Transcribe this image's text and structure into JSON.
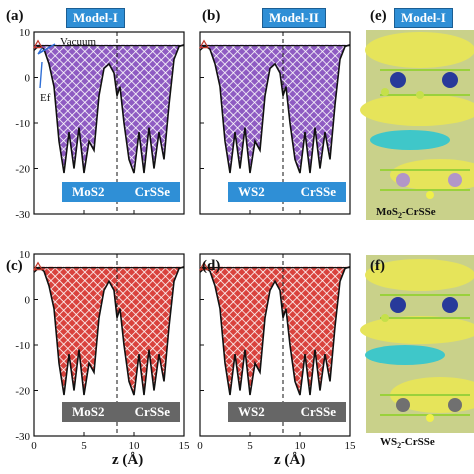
{
  "chart_data": [
    {
      "type": "area",
      "panel": "(a)",
      "model": "Model-I",
      "materials": [
        "MoS2",
        "CrSSe"
      ],
      "fill": "#8e5bc2",
      "box_color": "#2f8fd6",
      "annotations": [
        "Vacuum",
        "Ef"
      ],
      "xlim": [
        0,
        15
      ],
      "ylim": [
        -30,
        10
      ],
      "x": [
        0,
        0.5,
        1,
        1.5,
        2,
        2.5,
        3,
        3.5,
        4,
        4.5,
        5,
        5.5,
        6,
        6.5,
        7,
        7.5,
        8,
        8.3,
        8.6,
        9,
        9.5,
        10,
        10.5,
        11,
        11.5,
        12,
        12.5,
        13,
        13.5,
        14,
        14.5,
        15
      ],
      "y": [
        6,
        7,
        6.2,
        3,
        -2,
        -14,
        -21,
        -12,
        -20,
        -11,
        -21,
        -14,
        -16,
        -4,
        2,
        3,
        1,
        -4,
        -2,
        -10,
        -18,
        -21,
        -12,
        -21,
        -11,
        -20,
        -12,
        -18,
        -6,
        4,
        6.8,
        7.2
      ]
    },
    {
      "type": "area",
      "panel": "(b)",
      "model": "Model-II",
      "materials": [
        "WS2",
        "CrSSe"
      ],
      "fill": "#8e5bc2",
      "box_color": "#2f8fd6",
      "xlim": [
        0,
        15
      ],
      "ylim": [
        -30,
        10
      ],
      "x": [
        0,
        0.5,
        1,
        1.5,
        2,
        2.5,
        3,
        3.5,
        4,
        4.5,
        5,
        5.5,
        6,
        6.5,
        7,
        7.5,
        8,
        8.3,
        8.6,
        9,
        9.5,
        10,
        10.5,
        11,
        11.5,
        12,
        12.5,
        13,
        13.5,
        14,
        14.5,
        15
      ],
      "y": [
        6,
        7,
        6.2,
        3,
        -2,
        -14,
        -21,
        -12,
        -20,
        -11,
        -21,
        -14,
        -16,
        -4,
        2,
        3,
        1,
        -4,
        -2,
        -10,
        -18,
        -21,
        -12,
        -21,
        -11,
        -20,
        -12,
        -18,
        -6,
        4,
        6.8,
        7.2
      ]
    },
    {
      "type": "area",
      "panel": "(c)",
      "materials": [
        "MoS2",
        "CrSSe"
      ],
      "fill": "#d9423d",
      "box_color": "#666666",
      "xlim": [
        0,
        15
      ],
      "ylim": [
        -30,
        10
      ],
      "x": [
        0,
        0.5,
        1,
        1.5,
        2,
        2.5,
        3,
        3.5,
        4,
        4.5,
        5,
        5.5,
        6,
        6.5,
        7,
        7.5,
        8,
        8.3,
        8.6,
        9,
        9.5,
        10,
        10.5,
        11,
        11.5,
        12,
        12.5,
        13,
        13.5,
        14,
        14.5,
        15
      ],
      "y": [
        6,
        7,
        6.2,
        3,
        -2,
        -14,
        -21,
        -12,
        -20,
        -11,
        -21,
        -14,
        -16,
        -4,
        2,
        4,
        2,
        -4,
        -2,
        -10,
        -18,
        -21,
        -12,
        -21,
        -11,
        -20,
        -12,
        -18,
        -6,
        4,
        6.8,
        7.2
      ]
    },
    {
      "type": "area",
      "panel": "(d)",
      "materials": [
        "WS2",
        "CrSSe"
      ],
      "fill": "#d9423d",
      "box_color": "#666666",
      "xlim": [
        0,
        15
      ],
      "ylim": [
        -30,
        10
      ],
      "x": [
        0,
        0.5,
        1,
        1.5,
        2,
        2.5,
        3,
        3.5,
        4,
        4.5,
        5,
        5.5,
        6,
        6.5,
        7,
        7.5,
        8,
        8.3,
        8.6,
        9,
        9.5,
        10,
        10.5,
        11,
        11.5,
        12,
        12.5,
        13,
        13.5,
        14,
        14.5,
        15
      ],
      "y": [
        6,
        7,
        6.2,
        3,
        -2,
        -14,
        -21,
        -12,
        -20,
        -11,
        -21,
        -14,
        -16,
        -4,
        2,
        4,
        2,
        -4,
        -2,
        -10,
        -18,
        -21,
        -12,
        -21,
        -11,
        -20,
        -12,
        -18,
        -6,
        4,
        6.8,
        7.2
      ]
    }
  ],
  "xlabel": "z (Å)",
  "xticks": [
    "0",
    "5",
    "10",
    "15"
  ],
  "yticks": [
    "10",
    "0",
    "-10",
    "-20",
    "-30"
  ],
  "structures": [
    {
      "panel": "(e)",
      "model": "Model-I",
      "caption_a": "MoS",
      "caption_sub": "2",
      "caption_b": "-CrSSe"
    },
    {
      "panel": "(f)",
      "caption_a": "WS",
      "caption_sub": "2",
      "caption_b": "-CrSSe"
    }
  ]
}
